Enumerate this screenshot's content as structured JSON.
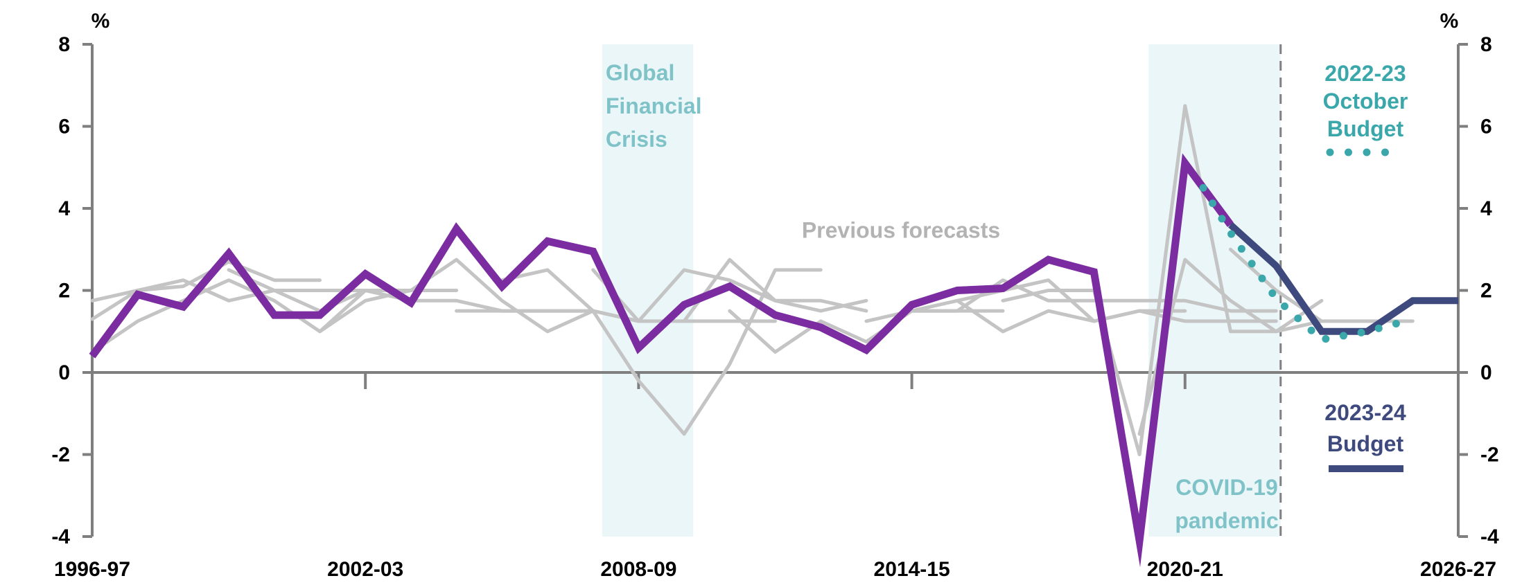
{
  "chart_data": {
    "type": "line",
    "title": "",
    "xlabel": "",
    "ylabel": "%",
    "ylabel_right": "%",
    "ylim": [
      -4,
      8
    ],
    "yticks": [
      -4,
      -2,
      0,
      2,
      4,
      6,
      8
    ],
    "x_tick_labels": [
      "1996-97",
      "2002-03",
      "2008-09",
      "2014-15",
      "2020-21",
      "2026-27"
    ],
    "categories": [
      "1996-97",
      "1997-98",
      "1998-99",
      "1999-00",
      "2000-01",
      "2001-02",
      "2002-03",
      "2003-04",
      "2004-05",
      "2005-06",
      "2006-07",
      "2007-08",
      "2008-09",
      "2009-10",
      "2010-11",
      "2011-12",
      "2012-13",
      "2013-14",
      "2014-15",
      "2015-16",
      "2016-17",
      "2017-18",
      "2018-19",
      "2019-20",
      "2020-21",
      "2021-22",
      "2022-23",
      "2023-24",
      "2024-25",
      "2025-26",
      "2026-27"
    ],
    "shaded_periods": [
      {
        "label_lines": [
          "Global",
          "Financial",
          "Crisis"
        ],
        "from": 11.2,
        "to": 13.2,
        "color": "#eaf6f7"
      },
      {
        "label_lines": [
          "COVID-19",
          "pandemic"
        ],
        "from": 23.2,
        "to": 26.1,
        "color": "#eaf6f7"
      }
    ],
    "forecast_divider_x": 26.1,
    "annotations": [
      {
        "name": "previous-forecasts-label",
        "text": "Previous forecasts",
        "x": 18.0,
        "y": 3.45,
        "color": "#b3b3b3"
      }
    ],
    "series": [
      {
        "key": "actual",
        "color": "#7b2ca1",
        "style": "solid",
        "points": [
          [
            0,
            0.4
          ],
          [
            1,
            1.9
          ],
          [
            2,
            1.6
          ],
          [
            3,
            2.9
          ],
          [
            4,
            1.4
          ],
          [
            5,
            1.4
          ],
          [
            6,
            2.4
          ],
          [
            7,
            1.7
          ],
          [
            8,
            3.5
          ],
          [
            9,
            2.1
          ],
          [
            10,
            3.2
          ],
          [
            11,
            2.95
          ],
          [
            12,
            0.6
          ],
          [
            13,
            1.65
          ],
          [
            14,
            2.1
          ],
          [
            15,
            1.4
          ],
          [
            16,
            1.1
          ],
          [
            17,
            0.55
          ],
          [
            18,
            1.65
          ],
          [
            19,
            2.0
          ],
          [
            20,
            2.05
          ],
          [
            21,
            2.75
          ],
          [
            22,
            2.45
          ],
          [
            23,
            -4.1
          ],
          [
            24,
            5.1
          ],
          [
            25,
            3.6
          ]
        ]
      },
      {
        "key": "2023-24 Budget",
        "label_lines": [
          "2023-24",
          "Budget"
        ],
        "color": "#3e4a7e",
        "style": "solid",
        "points": [
          [
            25,
            3.6
          ],
          [
            26,
            2.6
          ],
          [
            27,
            1.0
          ],
          [
            28,
            1.0
          ],
          [
            29,
            1.75
          ],
          [
            30,
            1.75
          ]
        ]
      },
      {
        "key": "2022-23 October Budget",
        "label_lines": [
          "2022-23",
          "October",
          "Budget"
        ],
        "color": "#3aa7aa",
        "style": "dotted",
        "points": [
          [
            24.4,
            4.5
          ],
          [
            25,
            3.4
          ],
          [
            26,
            1.8
          ],
          [
            27,
            0.8
          ],
          [
            28,
            1.0
          ],
          [
            29,
            1.3
          ]
        ]
      }
    ],
    "previous_forecasts": {
      "color": "#c4c4c4",
      "lines": [
        [
          [
            0,
            1.3
          ],
          [
            1,
            2.0
          ],
          [
            2,
            2.1
          ],
          [
            3,
            2.7
          ],
          [
            4,
            2.25
          ],
          [
            5,
            2.25
          ]
        ],
        [
          [
            0,
            1.75
          ],
          [
            1,
            2.0
          ],
          [
            2,
            2.25
          ],
          [
            3,
            1.75
          ],
          [
            4,
            2.0
          ],
          [
            5,
            2.0
          ],
          [
            6,
            2.0
          ]
        ],
        [
          [
            0,
            0.5
          ],
          [
            1,
            1.25
          ],
          [
            2,
            1.75
          ],
          [
            3,
            2.25
          ],
          [
            4,
            1.75
          ],
          [
            5,
            1.0
          ],
          [
            6,
            2.0
          ],
          [
            7,
            2.0
          ],
          [
            8,
            2.0
          ]
        ],
        [
          [
            3,
            2.5
          ],
          [
            4,
            2.0
          ],
          [
            5,
            1.5
          ],
          [
            6,
            2.0
          ],
          [
            7,
            1.75
          ],
          [
            8,
            1.75
          ],
          [
            9,
            1.5
          ],
          [
            10,
            1.5
          ],
          [
            11,
            1.5
          ]
        ],
        [
          [
            5,
            1.0
          ],
          [
            6,
            1.75
          ],
          [
            7,
            2.0
          ],
          [
            8,
            2.75
          ],
          [
            9,
            1.75
          ],
          [
            10,
            1.0
          ],
          [
            11,
            1.5
          ],
          [
            12,
            1.25
          ]
        ],
        [
          [
            8,
            1.5
          ],
          [
            9,
            1.5
          ],
          [
            10,
            1.5
          ],
          [
            11,
            1.5
          ],
          [
            12,
            1.25
          ],
          [
            13,
            1.25
          ],
          [
            14,
            1.25
          ],
          [
            15,
            1.25
          ]
        ],
        [
          [
            9,
            2.25
          ],
          [
            10,
            2.5
          ],
          [
            11,
            1.5
          ],
          [
            12,
            -0.2
          ],
          [
            13,
            -1.5
          ],
          [
            14,
            0.2
          ],
          [
            15,
            2.5
          ],
          [
            16,
            2.5
          ]
        ],
        [
          [
            11,
            2.5
          ],
          [
            12,
            1.25
          ],
          [
            13,
            2.5
          ],
          [
            14,
            2.25
          ],
          [
            15,
            1.75
          ],
          [
            16,
            1.75
          ],
          [
            17,
            1.5
          ]
        ],
        [
          [
            13,
            1.25
          ],
          [
            14,
            2.75
          ],
          [
            15,
            1.75
          ],
          [
            16,
            1.5
          ],
          [
            17,
            1.75
          ]
        ],
        [
          [
            14,
            1.5
          ],
          [
            15,
            0.5
          ],
          [
            16,
            1.25
          ],
          [
            17,
            0.75
          ],
          [
            18,
            1.5
          ],
          [
            19,
            1.5
          ],
          [
            20,
            1.5
          ]
        ],
        [
          [
            17,
            1.25
          ],
          [
            18,
            1.5
          ],
          [
            19,
            1.5
          ],
          [
            20,
            2.25
          ],
          [
            21,
            1.75
          ],
          [
            22,
            1.75
          ],
          [
            23,
            1.75
          ],
          [
            24,
            1.75
          ],
          [
            25,
            1.5
          ],
          [
            26,
            1.5
          ]
        ],
        [
          [
            18,
            1.5
          ],
          [
            19,
            1.75
          ],
          [
            20,
            1.0
          ],
          [
            21,
            1.5
          ],
          [
            22,
            1.25
          ],
          [
            23,
            1.5
          ],
          [
            24,
            1.25
          ],
          [
            25,
            1.25
          ],
          [
            26,
            1.25
          ]
        ],
        [
          [
            19,
            1.75
          ],
          [
            20,
            2.0
          ],
          [
            21,
            2.25
          ],
          [
            22,
            1.25
          ],
          [
            23,
            1.5
          ],
          [
            24,
            1.5
          ]
        ],
        [
          [
            20,
            1.75
          ],
          [
            21,
            2.0
          ],
          [
            22,
            2.0
          ],
          [
            23,
            -2.0
          ],
          [
            24,
            6.5
          ],
          [
            25,
            1.0
          ],
          [
            26,
            1.0
          ],
          [
            27,
            1.25
          ]
        ],
        [
          [
            23,
            -1.5
          ],
          [
            24,
            2.75
          ],
          [
            25,
            1.75
          ],
          [
            26,
            1.0
          ],
          [
            27,
            1.75
          ]
        ],
        [
          [
            25,
            3.0
          ],
          [
            26,
            2.0
          ],
          [
            27,
            1.25
          ],
          [
            28,
            1.25
          ],
          [
            29,
            1.25
          ]
        ]
      ]
    }
  }
}
